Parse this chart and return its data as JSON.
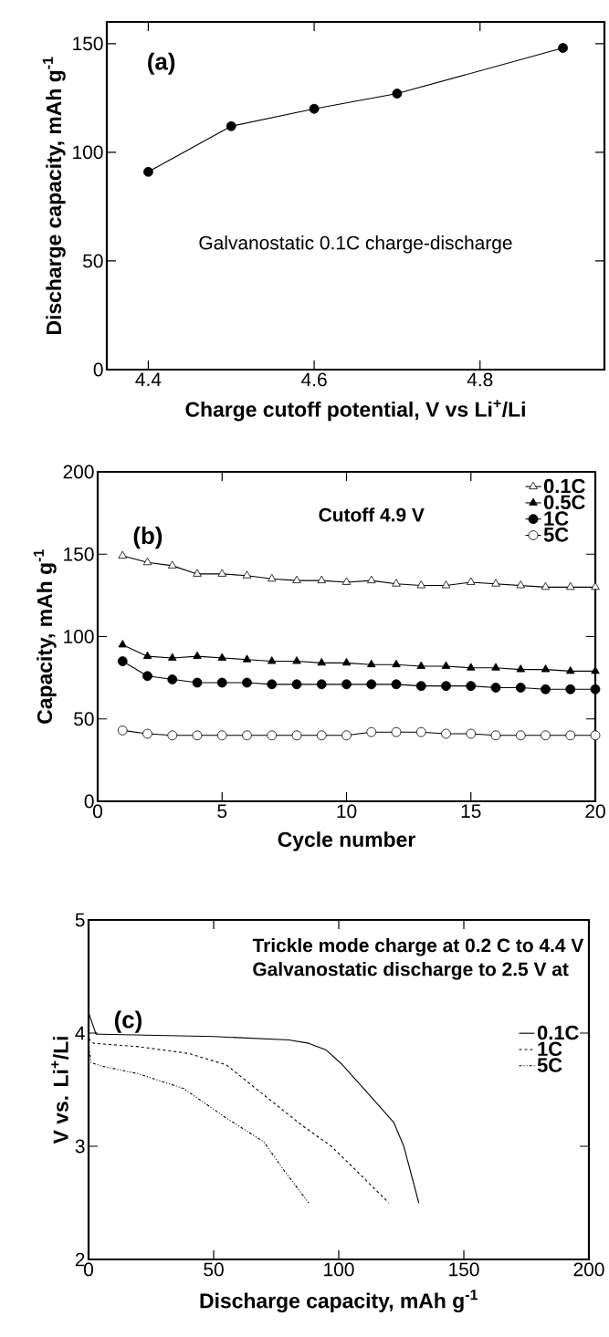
{
  "chart_data": [
    {
      "type": "line",
      "xlabel": "Charge cutoff potential, V vs Li$^{+}$/Li",
      "ylabel": "Discharge capacity, mAh g$^{-1}$",
      "annotations": [
        "(a)",
        "Galvanostatic 0.1C charge-discharge"
      ],
      "xlim": [
        4.35,
        4.95
      ],
      "xticks": [
        4.4,
        4.6,
        4.8
      ],
      "ylim": [
        0,
        160
      ],
      "yticks": [
        0,
        50,
        100,
        150
      ],
      "marker": "circle",
      "legend": false,
      "series": [
        {
          "color": "#000000",
          "x": [
            4.4,
            4.5,
            4.6,
            4.7,
            4.9
          ],
          "values": [
            91,
            112,
            120,
            127,
            148
          ]
        }
      ]
    },
    {
      "type": "line",
      "xlabel": "Cycle number",
      "ylabel": "Capacity, mAh g$^{-1}$",
      "annotations": [
        "(b)",
        "Cutoff 4.9 V"
      ],
      "xlim": [
        0,
        20
      ],
      "xticks": [
        0,
        5,
        10,
        15,
        20
      ],
      "ylim": [
        0,
        200
      ],
      "yticks": [
        0,
        50,
        100,
        150,
        200
      ],
      "legend": "top right",
      "x": [
        1,
        2,
        3,
        4,
        5,
        6,
        7,
        8,
        9,
        10,
        11,
        12,
        13,
        14,
        15,
        16,
        17,
        18,
        19,
        20
      ],
      "series": [
        {
          "name": "0.1C",
          "color": "#000000",
          "marker": "triangle",
          "values": [
            149,
            145,
            143,
            138,
            138,
            137,
            135,
            134,
            134,
            133,
            134,
            132,
            131,
            131,
            133,
            132,
            131,
            130,
            130,
            130
          ]
        },
        {
          "name": "0.5C",
          "color": "#000000",
          "marker": "triangle",
          "values": [
            95,
            88,
            87,
            88,
            87,
            86,
            85,
            85,
            84,
            84,
            83,
            83,
            82,
            82,
            81,
            81,
            80,
            80,
            79,
            79
          ]
        },
        {
          "name": "1C",
          "color": "#000000",
          "marker": "circle",
          "values": [
            85,
            76,
            74,
            72,
            72,
            72,
            71,
            71,
            71,
            71,
            71,
            71,
            70,
            70,
            70,
            69,
            69,
            68,
            68,
            68
          ]
        },
        {
          "name": "5C",
          "color": "#000000",
          "marker": "circle",
          "values": [
            43,
            41,
            40,
            40,
            40,
            40,
            40,
            40,
            40,
            40,
            42,
            42,
            42,
            41,
            41,
            40,
            40,
            40,
            40,
            40
          ]
        }
      ]
    },
    {
      "type": "line",
      "xlabel": "Discharge capacity, mAh g$^{-1}$",
      "ylabel": "V vs. Li$^{+}$/Li",
      "annotations": [
        "Trickle mode charge at 0.2 C to 4.4 V",
        "Galvanostatic discharge to 2.5 V at",
        "(c)"
      ],
      "xlim": [
        0,
        200
      ],
      "xticks": [
        0,
        50,
        100,
        150,
        200
      ],
      "ylim": [
        2,
        5
      ],
      "yticks": [
        2,
        3,
        4,
        5
      ],
      "legend": "right",
      "marker": "none",
      "series": [
        {
          "name": "0.1C",
          "color": "#000000",
          "line_style": "solid",
          "x": [
            0,
            3,
            5,
            50,
            80,
            88,
            95,
            101,
            110,
            122,
            126,
            132
          ],
          "values": [
            4.18,
            3.99,
            3.99,
            3.97,
            3.94,
            3.91,
            3.85,
            3.73,
            3.51,
            3.21,
            3.0,
            2.5
          ]
        },
        {
          "name": "1C",
          "color": "#000000",
          "line_style": "dashed",
          "x": [
            0,
            2,
            20,
            40,
            55,
            68,
            85,
            97,
            104,
            120
          ],
          "values": [
            3.95,
            3.91,
            3.88,
            3.82,
            3.72,
            3.49,
            3.19,
            3.0,
            2.85,
            2.5
          ]
        },
        {
          "name": "5C",
          "color": "#000000",
          "line_style": "dotted",
          "x": [
            0,
            1,
            5,
            20,
            38,
            55,
            70,
            78,
            88
          ],
          "values": [
            3.9,
            3.74,
            3.71,
            3.64,
            3.51,
            3.25,
            3.04,
            2.79,
            2.5
          ]
        }
      ]
    }
  ]
}
